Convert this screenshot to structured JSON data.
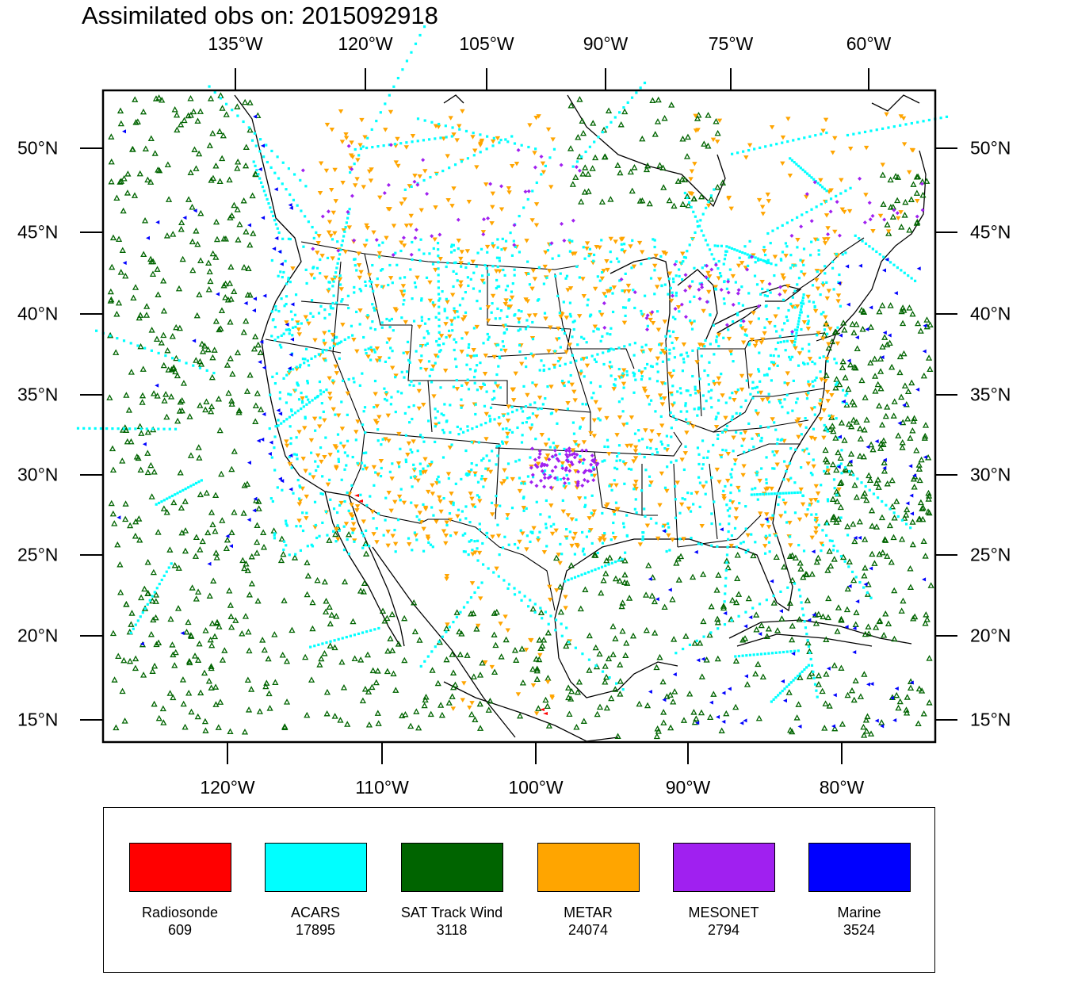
{
  "title": "Assimilated obs on: 2015092918",
  "top_axis_labels": [
    "135°W",
    "120°W",
    "105°W",
    "90°W",
    "75°W",
    "60°W"
  ],
  "bottom_axis_labels": [
    "120°W",
    "110°W",
    "100°W",
    "90°W",
    "80°W"
  ],
  "left_axis_labels": [
    "50°N",
    "45°N",
    "40°N",
    "35°N",
    "30°N",
    "25°N",
    "20°N",
    "15°N"
  ],
  "right_axis_labels": [
    "50°N",
    "45°N",
    "40°N",
    "35°N",
    "30°N",
    "25°N",
    "20°N",
    "15°N"
  ],
  "colors": {
    "radiosonde": "#ff0000",
    "acars": "#00ffff",
    "sat_track_wind": "#006400",
    "metar": "#ffa500",
    "mesonet": "#a020f0",
    "marine": "#0000ff",
    "land": "#ffffff",
    "coast": "#000000"
  },
  "legend": [
    {
      "key": "radiosonde",
      "name": "Radiosonde",
      "count": "609"
    },
    {
      "key": "acars",
      "name": "ACARS",
      "count": "17895"
    },
    {
      "key": "sat_track_wind",
      "name": "SAT Track Wind",
      "count": "3118"
    },
    {
      "key": "metar",
      "name": "METAR",
      "count": "24074"
    },
    {
      "key": "mesonet",
      "name": "MESONET",
      "count": "2794"
    },
    {
      "key": "marine",
      "name": "Marine",
      "count": "3524"
    }
  ]
}
